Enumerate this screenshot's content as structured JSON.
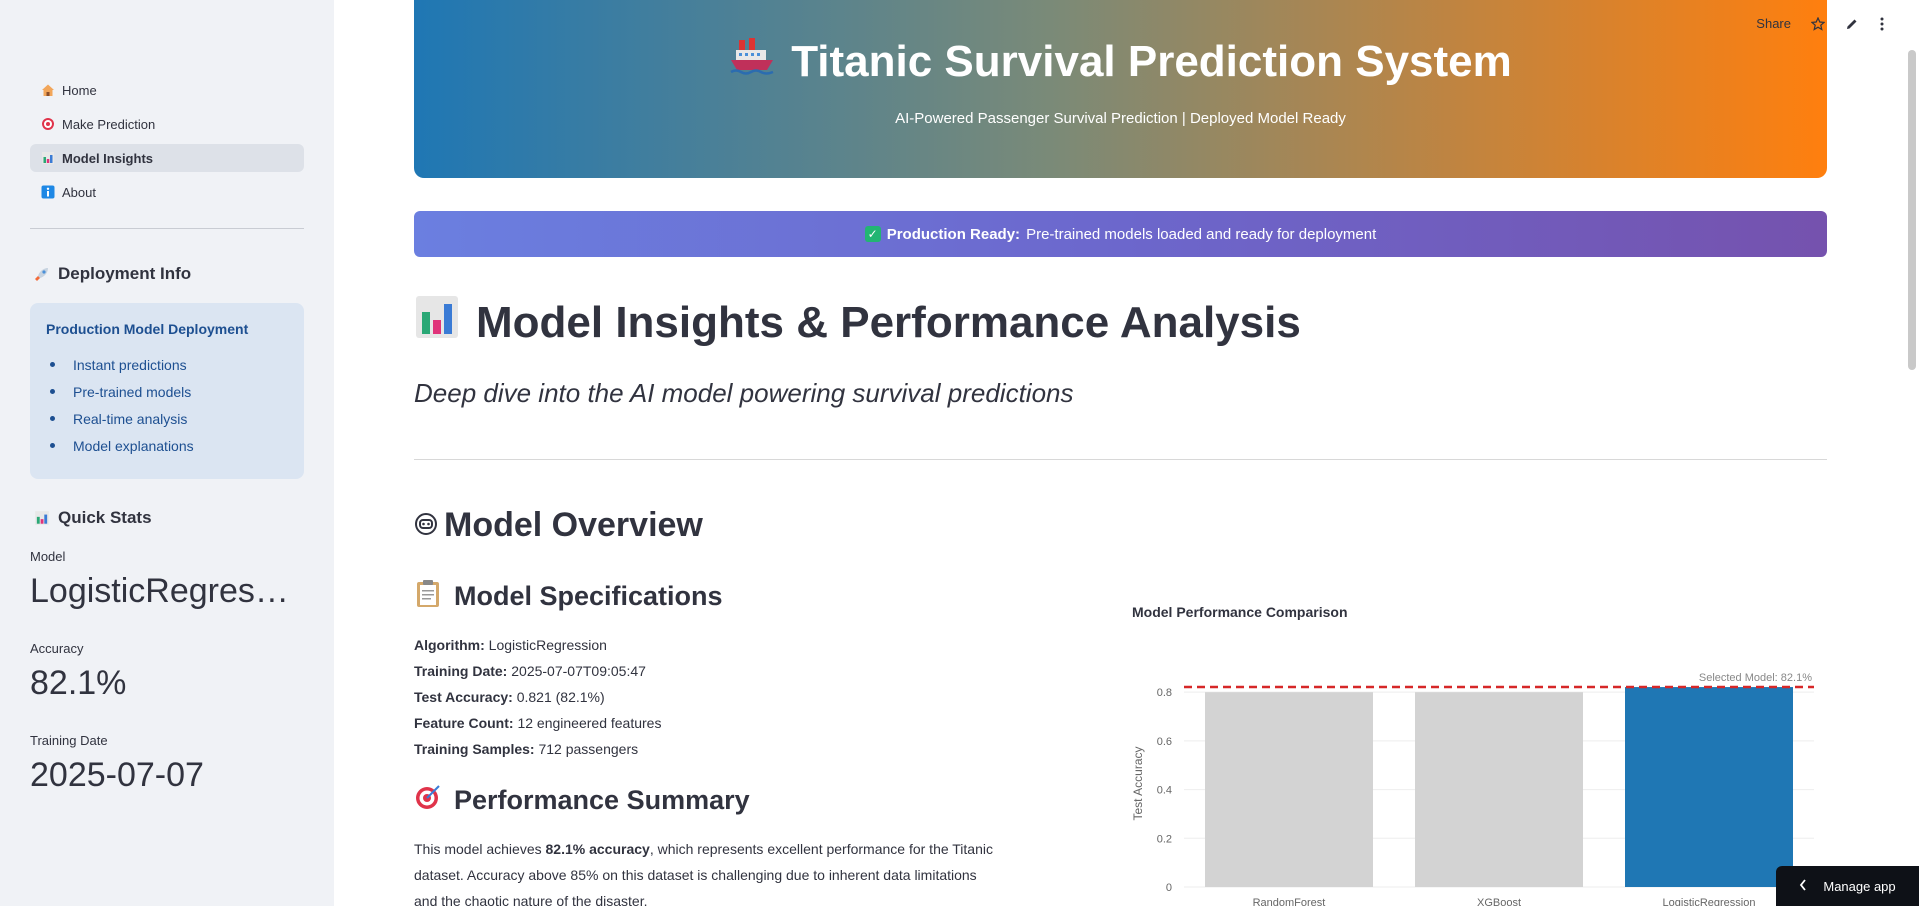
{
  "sidebar": {
    "nav": [
      {
        "label": "Home",
        "icon": "house-icon"
      },
      {
        "label": "Make Prediction",
        "icon": "target-icon"
      },
      {
        "label": "Model Insights",
        "icon": "bar-chart-icon"
      },
      {
        "label": "About",
        "icon": "info-icon"
      }
    ],
    "deployment_heading": "Deployment Info",
    "deployment_box": {
      "title": "Production Model Deployment",
      "items": [
        "Instant predictions",
        "Pre-trained models",
        "Real-time analysis",
        "Model explanations"
      ]
    },
    "quick_stats_heading": "Quick Stats",
    "metrics": [
      {
        "label": "Model",
        "value": "LogisticRegression"
      },
      {
        "label": "Accuracy",
        "value": "82.1%"
      },
      {
        "label": "Training Date",
        "value": "2025-07-07"
      }
    ]
  },
  "toolbar": {
    "share": "Share"
  },
  "header": {
    "title": "Titanic Survival Prediction System",
    "subtitle": "AI-Powered Passenger Survival Prediction | Deployed Model Ready"
  },
  "banner": {
    "bold": "Production Ready:",
    "text": "Pre-trained models loaded and ready for deployment"
  },
  "page": {
    "title": "Model Insights & Performance Analysis",
    "subtitle": "Deep dive into the AI model powering survival predictions"
  },
  "overview": {
    "heading": "Model Overview",
    "specs_heading": "Model Specifications",
    "specs": [
      {
        "label": "Algorithm:",
        "value": "LogisticRegression"
      },
      {
        "label": "Training Date:",
        "value": "2025-07-07T09:05:47"
      },
      {
        "label": "Test Accuracy:",
        "value": "0.821 (82.1%)"
      },
      {
        "label": "Feature Count:",
        "value": "12 engineered features"
      },
      {
        "label": "Training Samples:",
        "value": "712 passengers"
      }
    ],
    "summary_heading": "Performance Summary",
    "summary_pre": "This model achieves ",
    "summary_bold": "82.1% accuracy",
    "summary_post": ", which represents excellent performance for the Titanic dataset. Accuracy above 85% on this dataset is challenging due to inherent data limitations and the chaotic nature of the disaster."
  },
  "chart_data": {
    "type": "bar",
    "title": "Model Performance Comparison",
    "categories": [
      "RandomForest",
      "XGBoost",
      "LogisticRegression"
    ],
    "values": [
      0.8,
      0.8,
      0.821
    ],
    "colors": [
      "#d3d3d3",
      "#d3d3d3",
      "#1f77b4"
    ],
    "ylabel": "Test Accuracy",
    "ylim": [
      0,
      0.85
    ],
    "yticks": [
      "0",
      "0.2",
      "0.4",
      "0.6",
      "0.8"
    ],
    "reference_line": {
      "value": 0.821,
      "label": "Selected Model: 82.1%",
      "color": "#d62728"
    }
  },
  "manage_app": "Manage app"
}
